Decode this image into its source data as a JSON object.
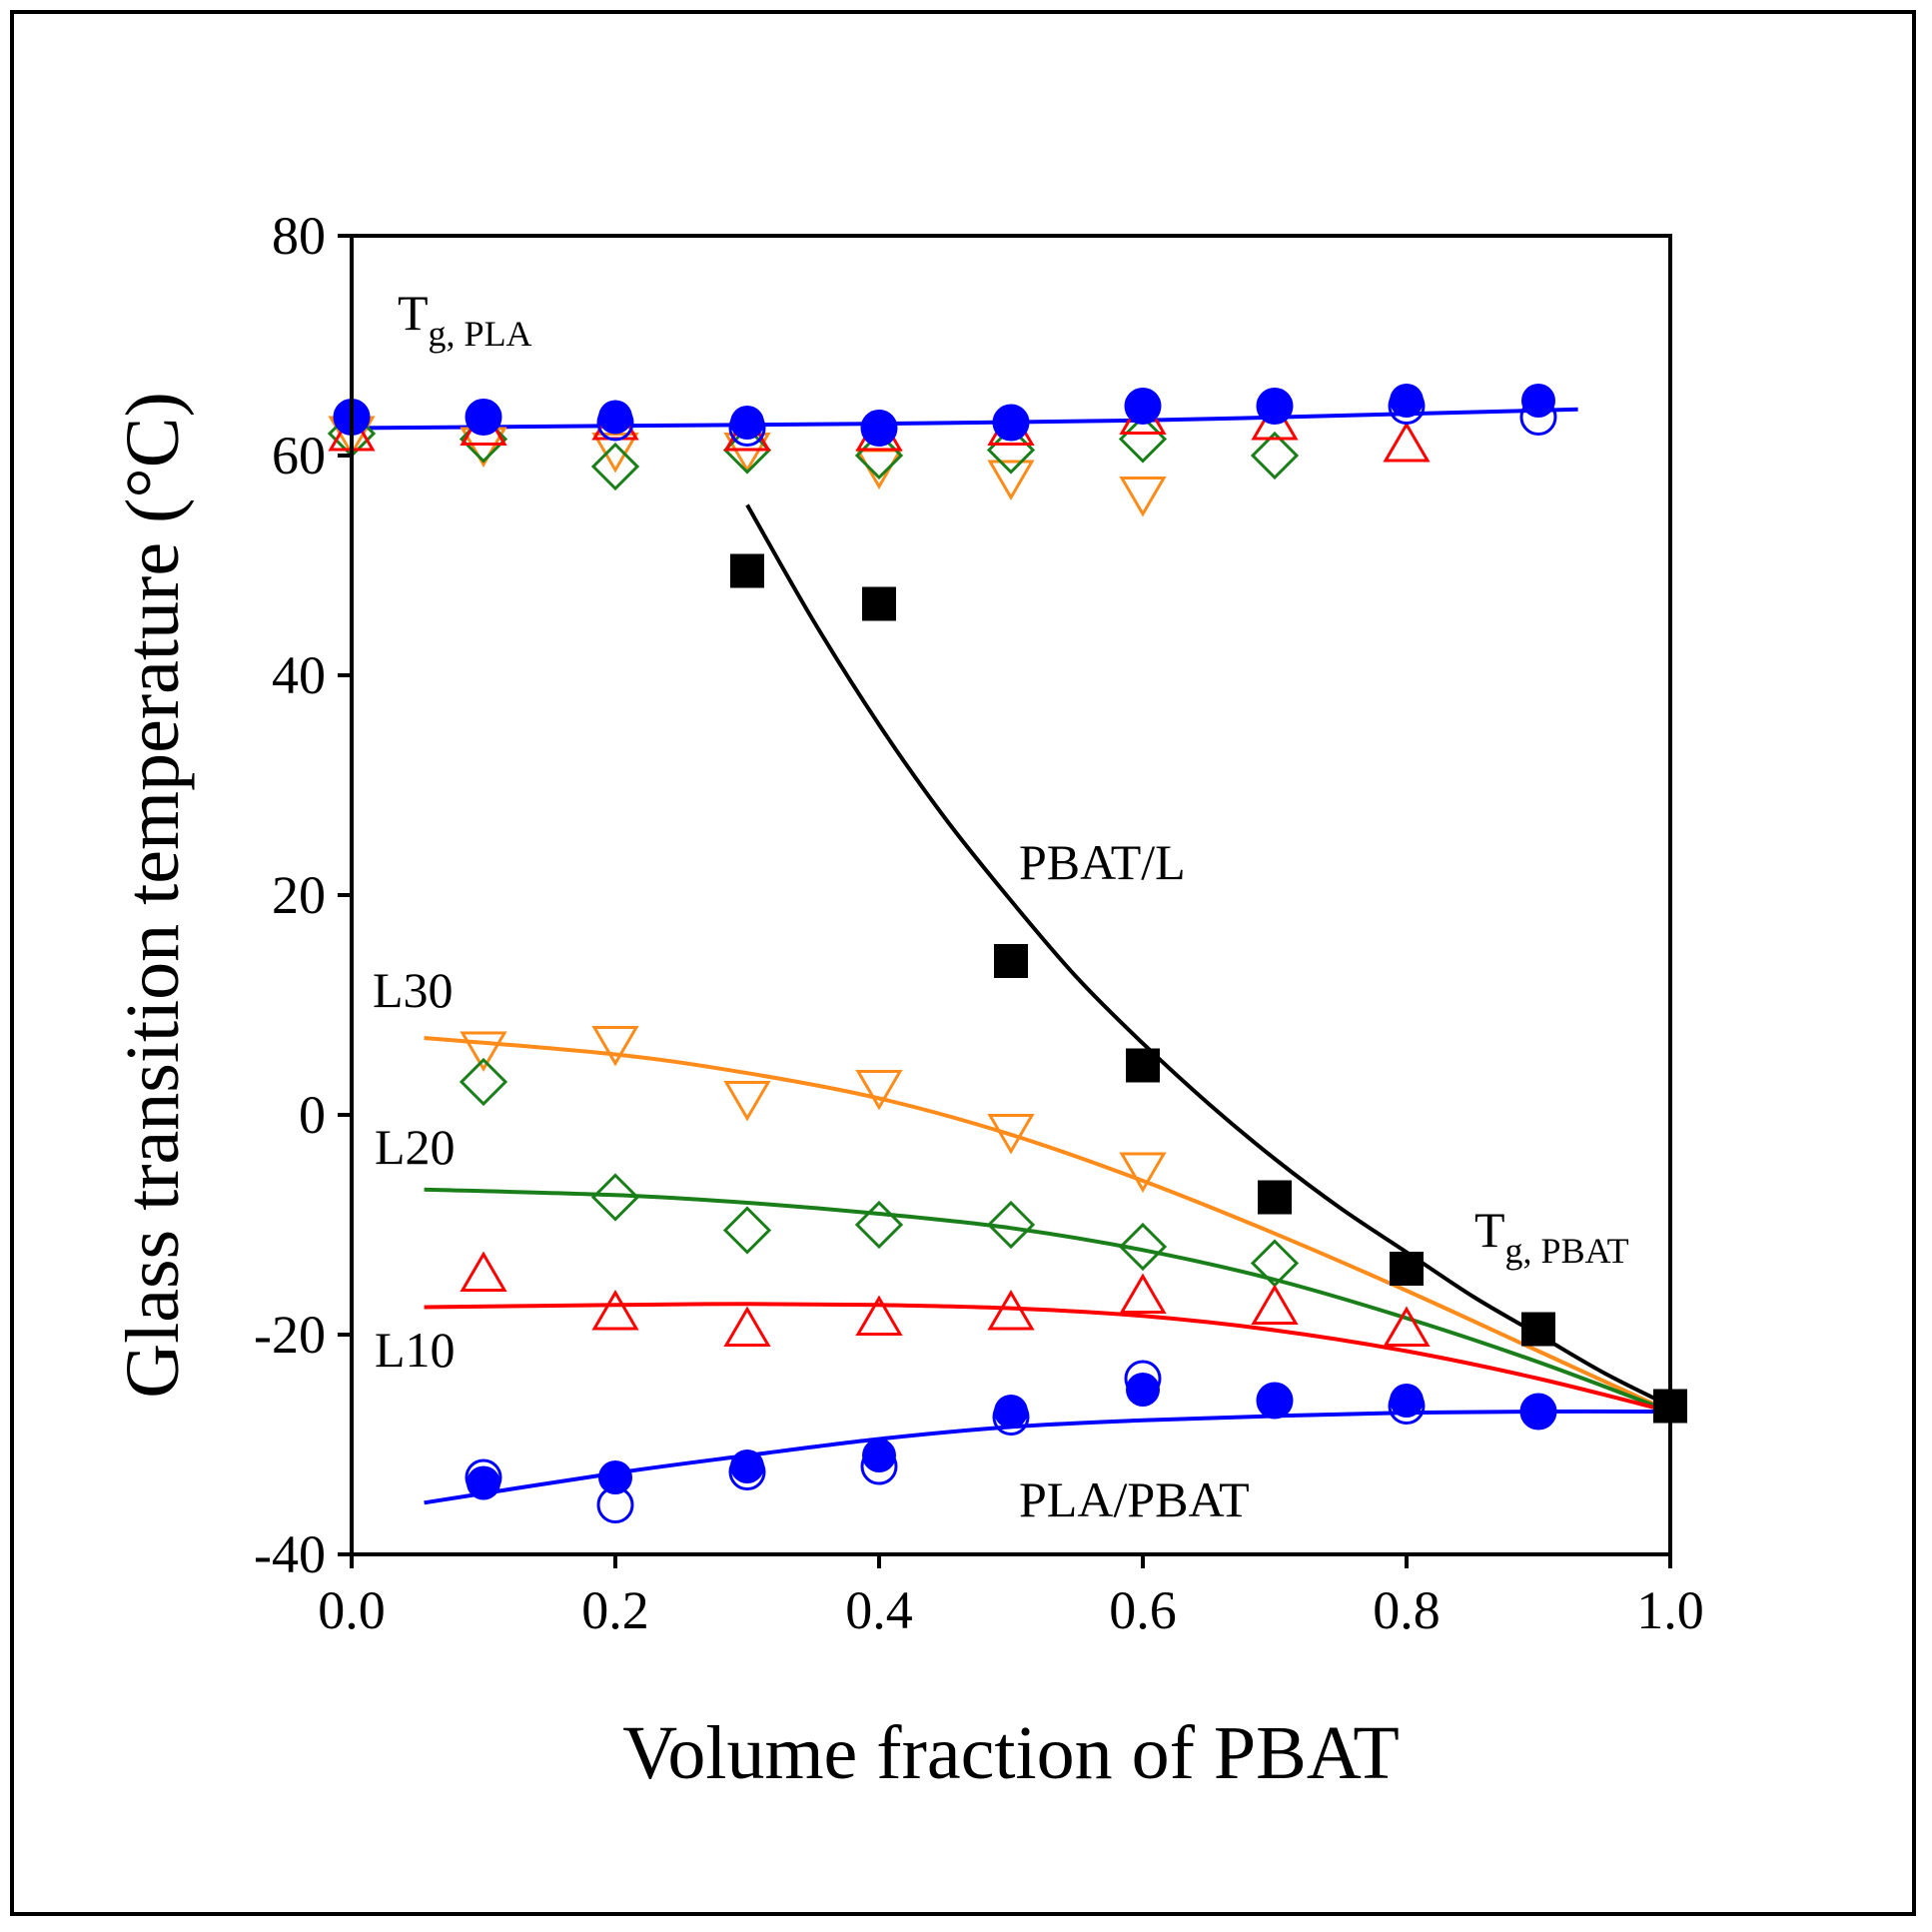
{
  "chart_data": {
    "type": "scatter",
    "xlabel": "Volume fraction of PBAT",
    "ylabel": "Glass transition temperature (°C)",
    "xlim": [
      0.0,
      1.0
    ],
    "ylim": [
      -40,
      80
    ],
    "xticks": [
      "0.0",
      "0.2",
      "0.4",
      "0.6",
      "0.8",
      "1.0"
    ],
    "yticks": [
      "-40",
      "-20",
      "0",
      "20",
      "40",
      "60",
      "80"
    ],
    "annotations": {
      "tg_pla_main": "T",
      "tg_pla_sub": "g, PLA",
      "tg_pbat_main": "T",
      "tg_pbat_sub": "g, PBAT",
      "pbat_l": "PBAT/L",
      "l30": "L30",
      "l20": "L20",
      "l10": "L10",
      "pla_pbat": "PLA/PBAT"
    },
    "series": [
      {
        "name": "PBAT/L",
        "marker": "square-filled",
        "color": "#000000",
        "x": [
          0.3,
          0.4,
          0.5,
          0.6,
          0.7,
          0.8,
          0.9,
          1.0
        ],
        "y": [
          49.5,
          46.5,
          14.0,
          4.5,
          -7.5,
          -14.0,
          -19.5,
          -26.5
        ]
      },
      {
        "name": "L30",
        "marker": "triangle-down-open",
        "color": "#ff8c1a",
        "x": [
          0.0,
          0.1,
          0.2,
          0.3,
          0.4,
          0.5,
          0.6
        ],
        "y": [
          62.0,
          61.0,
          60.5,
          60.5,
          59.0,
          58.0,
          56.5
        ]
      },
      {
        "name": "L30",
        "marker": "triangle-down-open",
        "color": "#ff8c1a",
        "x": [
          0.1,
          0.2,
          0.3,
          0.4,
          0.5,
          0.6
        ],
        "y": [
          6.0,
          6.5,
          1.5,
          2.5,
          -1.5,
          -5.0
        ]
      },
      {
        "name": "L20",
        "marker": "diamond-open",
        "color": "#1a7f1a",
        "x": [
          0.0,
          0.1,
          0.2,
          0.3,
          0.4,
          0.5,
          0.6,
          0.7
        ],
        "y": [
          62.0,
          61.5,
          59.0,
          60.5,
          60.0,
          60.5,
          61.5,
          60.0
        ]
      },
      {
        "name": "L20",
        "marker": "diamond-open",
        "color": "#1a7f1a",
        "x": [
          0.1,
          0.2,
          0.3,
          0.4,
          0.5,
          0.6,
          0.7
        ],
        "y": [
          3.0,
          -7.5,
          -10.5,
          -10.0,
          -10.0,
          -12.0,
          -13.5
        ]
      },
      {
        "name": "L10",
        "marker": "triangle-up-open",
        "color": "#ff0000",
        "x": [
          0.0,
          0.1,
          0.2,
          0.3,
          0.4,
          0.5,
          0.6,
          0.7,
          0.8
        ],
        "y": [
          62.0,
          62.5,
          63.0,
          62.0,
          62.0,
          62.5,
          63.5,
          63.0,
          61.0
        ]
      },
      {
        "name": "L10",
        "marker": "triangle-up-open",
        "color": "#ff0000",
        "x": [
          0.1,
          0.2,
          0.3,
          0.4,
          0.5,
          0.6,
          0.7,
          0.8
        ],
        "y": [
          -14.5,
          -18.0,
          -19.5,
          -18.5,
          -18.0,
          -16.5,
          -17.5,
          -19.5
        ]
      },
      {
        "name": "PLA/PBAT open",
        "marker": "circle-open",
        "color": "#0000ff",
        "x": [
          0.0,
          0.1,
          0.2,
          0.3,
          0.4,
          0.5,
          0.6,
          0.7,
          0.8,
          0.9
        ],
        "y": [
          63.5,
          63.5,
          63.0,
          62.5,
          62.5,
          63.0,
          64.5,
          64.5,
          64.5,
          63.5
        ]
      },
      {
        "name": "PLA/PBAT open",
        "marker": "circle-open",
        "color": "#0000ff",
        "x": [
          0.1,
          0.2,
          0.3,
          0.4,
          0.5,
          0.6,
          0.7,
          0.8,
          0.9
        ],
        "y": [
          -33.0,
          -35.5,
          -32.5,
          -32.0,
          -27.5,
          -24.0,
          -26.0,
          -26.5,
          -27.0
        ]
      },
      {
        "name": "PLA/PBAT",
        "marker": "circle-filled",
        "color": "#0000ff",
        "x": [
          0.0,
          0.1,
          0.2,
          0.3,
          0.4,
          0.5,
          0.6,
          0.7,
          0.8,
          0.9
        ],
        "y": [
          63.5,
          63.5,
          63.5,
          63.0,
          62.5,
          63.0,
          64.5,
          64.5,
          65.0,
          65.0
        ]
      },
      {
        "name": "PLA/PBAT",
        "marker": "circle-filled",
        "color": "#0000ff",
        "x": [
          0.1,
          0.2,
          0.3,
          0.4,
          0.5,
          0.6,
          0.7,
          0.8,
          0.9
        ],
        "y": [
          -33.5,
          -33.0,
          -32.0,
          -31.0,
          -27.0,
          -25.0,
          -26.0,
          -26.0,
          -27.0
        ]
      }
    ],
    "fit_lines": [
      {
        "name": "PLA/PBAT upper fit",
        "color": "#0000ff",
        "x": [
          0.0,
          0.2,
          0.4,
          0.6,
          0.8,
          0.93
        ],
        "y": [
          62.5,
          62.7,
          62.9,
          63.2,
          63.8,
          64.2
        ]
      },
      {
        "name": "PBAT/L fit",
        "color": "#000000",
        "x": [
          0.3,
          0.35,
          0.4,
          0.45,
          0.5,
          0.55,
          0.6,
          0.65,
          0.7,
          0.75,
          0.8,
          0.85,
          0.9,
          0.95,
          1.0
        ],
        "y": [
          55.5,
          45.0,
          35.5,
          27.0,
          19.5,
          12.5,
          6.5,
          1.0,
          -4.0,
          -8.5,
          -12.5,
          -16.5,
          -20.0,
          -23.5,
          -26.5
        ]
      },
      {
        "name": "L30 fit",
        "color": "#ff8c1a",
        "x": [
          0.055,
          0.2,
          0.3,
          0.4,
          0.5,
          0.6,
          0.7,
          0.8,
          0.9,
          1.0
        ],
        "y": [
          7.0,
          5.5,
          3.8,
          1.5,
          -1.8,
          -6.0,
          -10.8,
          -16.0,
          -21.5,
          -27.0
        ]
      },
      {
        "name": "L20 fit",
        "color": "#1a7f1a",
        "x": [
          0.055,
          0.2,
          0.3,
          0.4,
          0.5,
          0.6,
          0.7,
          0.8,
          0.9,
          1.0
        ],
        "y": [
          -6.8,
          -7.3,
          -8.0,
          -9.0,
          -10.3,
          -12.3,
          -15.0,
          -18.5,
          -22.5,
          -27.0
        ]
      },
      {
        "name": "L10 fit",
        "color": "#ff0000",
        "x": [
          0.055,
          0.2,
          0.3,
          0.4,
          0.5,
          0.6,
          0.7,
          0.8,
          0.9,
          1.0
        ],
        "y": [
          -17.5,
          -17.3,
          -17.2,
          -17.3,
          -17.6,
          -18.3,
          -19.6,
          -21.5,
          -24.0,
          -27.0
        ]
      },
      {
        "name": "PLA/PBAT lower fit",
        "color": "#0000ff",
        "x": [
          0.055,
          0.2,
          0.3,
          0.4,
          0.5,
          0.6,
          0.7,
          0.8,
          0.9,
          1.0
        ],
        "y": [
          -35.3,
          -32.6,
          -31.0,
          -29.5,
          -28.4,
          -27.8,
          -27.4,
          -27.1,
          -27.0,
          -27.0
        ]
      }
    ]
  }
}
